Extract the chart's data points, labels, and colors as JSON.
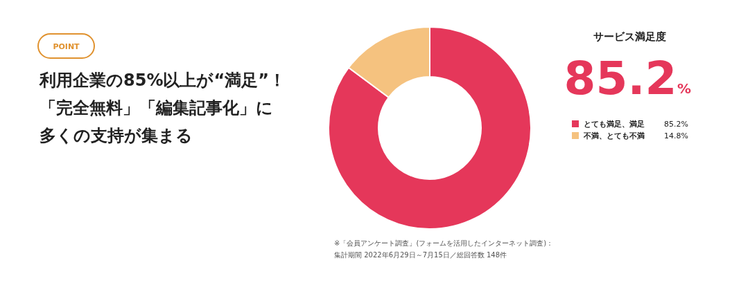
{
  "chart_data": {
    "type": "donut",
    "title": "利用企業の85%以上が“満足”！「完全無料」「編集記事化」に多くの支持が集まる",
    "subtitle": "サービス満足度",
    "categories": [
      "とても満足、満足",
      "不満、とても不満"
    ],
    "values": [
      85.2,
      14.8
    ],
    "colors": [
      "#e5375a",
      "#f5c27f"
    ],
    "value_labels": [
      "85.2%",
      "14.8%"
    ],
    "legend": "right",
    "annotations": [
      "POINT",
      "85.2",
      "%",
      "※「会員アンケート調査」(フォームを活用したインターネット調査)：",
      "集計期間 2022年6月29日～7月15日／総回答数 148件"
    ]
  }
}
